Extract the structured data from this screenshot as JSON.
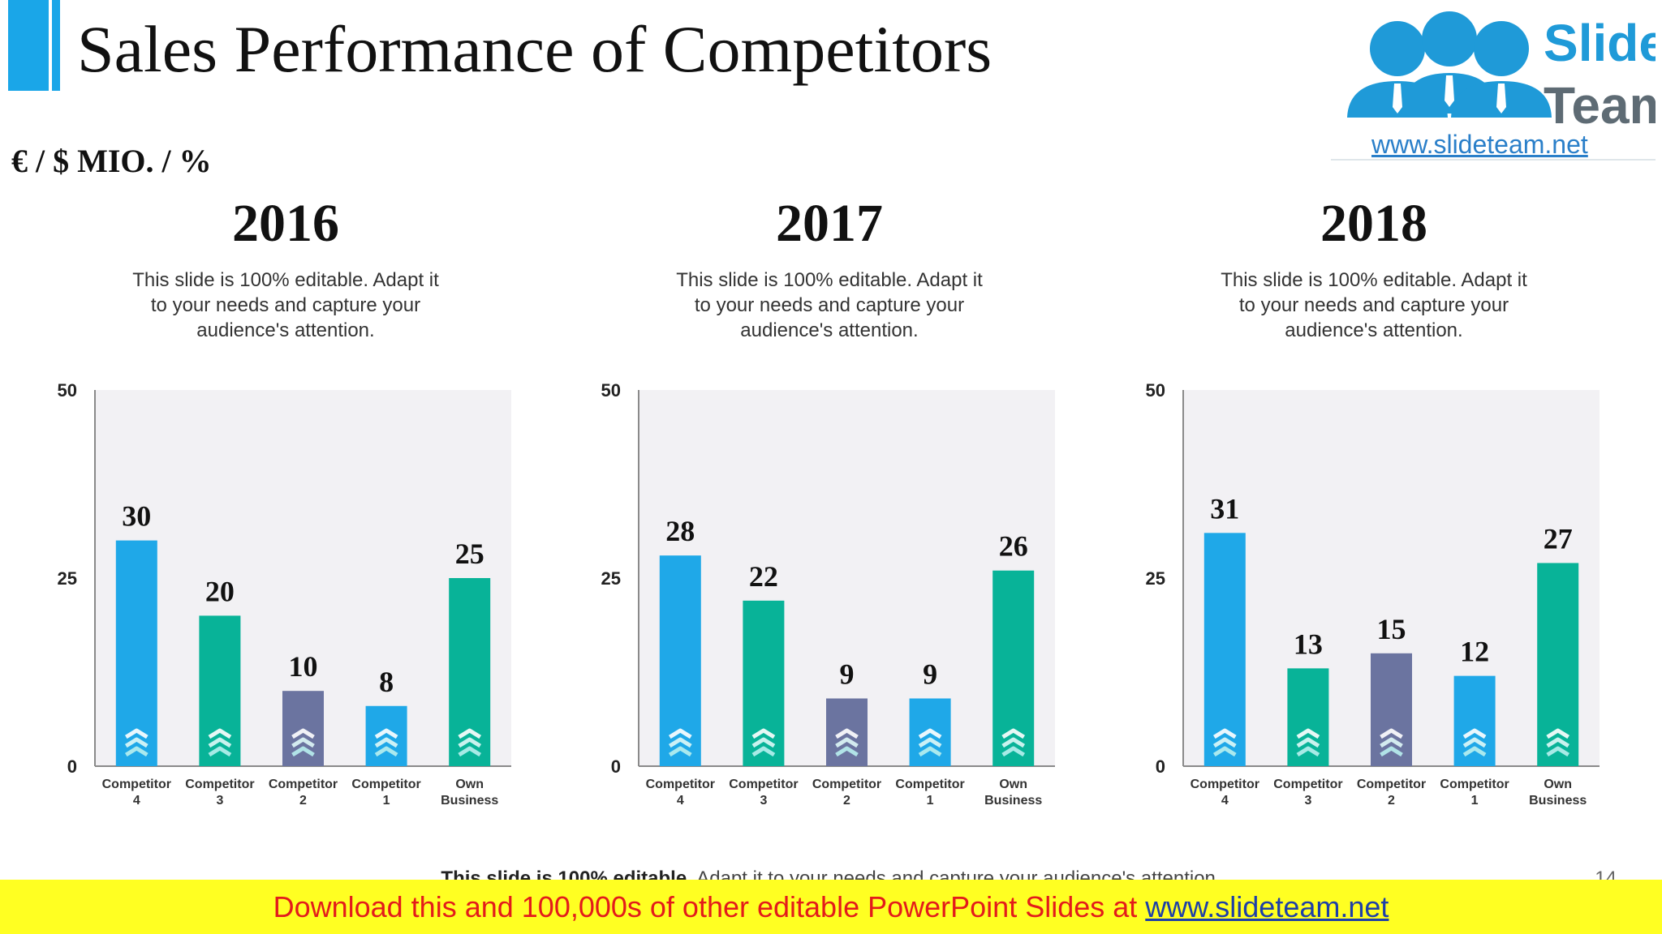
{
  "header": {
    "title": "Sales Performance of Competitors",
    "units": "€ / $ MIO. / %"
  },
  "logo": {
    "word1": "Slide",
    "word2": "Team",
    "url": "www.slideteam.net"
  },
  "colors": {
    "blue": "#1fa8e8",
    "green": "#08b398",
    "purple": "#6b74a0",
    "plot_bg": "#f2f1f4"
  },
  "panels": [
    {
      "year": "2016",
      "description": [
        "This slide is 100% editable. Adapt it",
        "to your needs and capture your",
        "audience's attention."
      ]
    },
    {
      "year": "2017",
      "description": [
        "This slide is 100% editable. Adapt it",
        "to your needs and capture your",
        "audience's attention."
      ]
    },
    {
      "year": "2018",
      "description": [
        "This slide is 100% editable. Adapt it",
        "to your needs and capture your",
        "audience's attention."
      ]
    }
  ],
  "chart_data": [
    {
      "type": "bar",
      "title": "2016",
      "categories": [
        [
          "Competitor",
          "4"
        ],
        [
          "Competitor",
          "3"
        ],
        [
          "Competitor",
          "2"
        ],
        [
          "Competitor",
          "1"
        ],
        [
          "Own",
          "Business"
        ]
      ],
      "values": [
        30,
        20,
        10,
        8,
        25
      ],
      "bar_colors": [
        "blue",
        "green",
        "purple",
        "blue",
        "green"
      ],
      "ylim": [
        0,
        50
      ],
      "yticks": [
        0,
        25,
        50
      ],
      "data_labels": true
    },
    {
      "type": "bar",
      "title": "2017",
      "categories": [
        [
          "Competitor",
          "4"
        ],
        [
          "Competitor",
          "3"
        ],
        [
          "Competitor",
          "2"
        ],
        [
          "Competitor",
          "1"
        ],
        [
          "Own",
          "Business"
        ]
      ],
      "values": [
        28,
        22,
        9,
        9,
        26
      ],
      "bar_colors": [
        "blue",
        "green",
        "purple",
        "blue",
        "green"
      ],
      "ylim": [
        0,
        50
      ],
      "yticks": [
        0,
        25,
        50
      ],
      "data_labels": true
    },
    {
      "type": "bar",
      "title": "2018",
      "categories": [
        [
          "Competitor",
          "4"
        ],
        [
          "Competitor",
          "3"
        ],
        [
          "Competitor",
          "2"
        ],
        [
          "Competitor",
          "1"
        ],
        [
          "Own",
          "Business"
        ]
      ],
      "values": [
        31,
        13,
        15,
        12,
        27
      ],
      "bar_colors": [
        "blue",
        "green",
        "purple",
        "blue",
        "green"
      ],
      "ylim": [
        0,
        50
      ],
      "yticks": [
        0,
        25,
        50
      ],
      "data_labels": true
    }
  ],
  "footer": {
    "note_bold": "This slide is 100% editable.",
    "note_rest": "Adapt it to your needs and capture your audience's attention.",
    "page_number": "14"
  },
  "banner": {
    "text": "Download this and 100,000s of other editable PowerPoint Slides at",
    "link": "www.slideteam.net"
  }
}
